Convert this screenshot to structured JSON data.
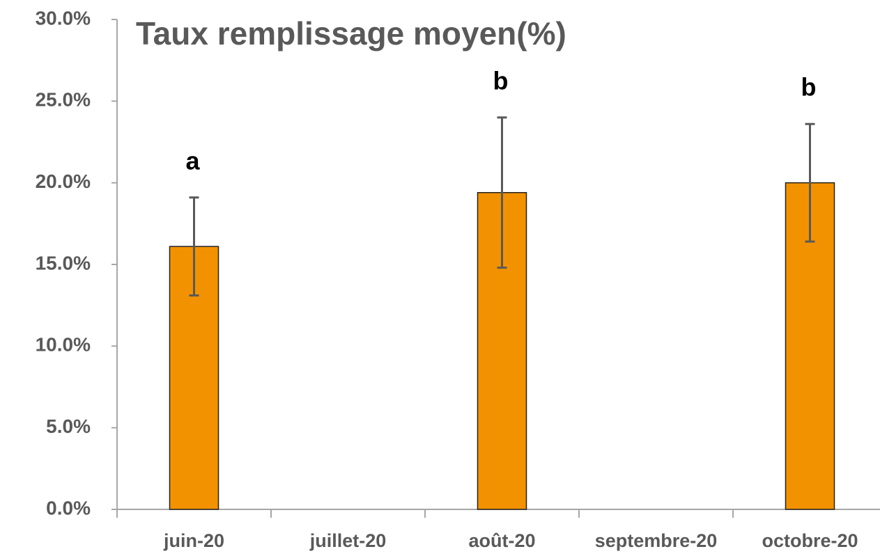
{
  "chart_data": {
    "type": "bar",
    "title": "Taux remplissage moyen(%)",
    "categories": [
      "juin-20",
      "juillet-20",
      "août-20",
      "septembre-20",
      "octobre-20"
    ],
    "values": [
      16.1,
      null,
      19.4,
      null,
      20.0
    ],
    "errors": [
      3.0,
      null,
      4.6,
      null,
      3.6
    ],
    "annotations": [
      "a",
      null,
      "b",
      null,
      "b"
    ],
    "color": "#f39200",
    "ylim": [
      0,
      30
    ],
    "yticks": [
      {
        "value": 0,
        "label": "0.0%"
      },
      {
        "value": 5,
        "label": "5.0%"
      },
      {
        "value": 10,
        "label": "10.0%"
      },
      {
        "value": 15,
        "label": "15.0%"
      },
      {
        "value": 20,
        "label": "20.0%"
      },
      {
        "value": 25,
        "label": "25.0%"
      },
      {
        "value": 30,
        "label": "30.0%"
      }
    ],
    "grid": false
  }
}
